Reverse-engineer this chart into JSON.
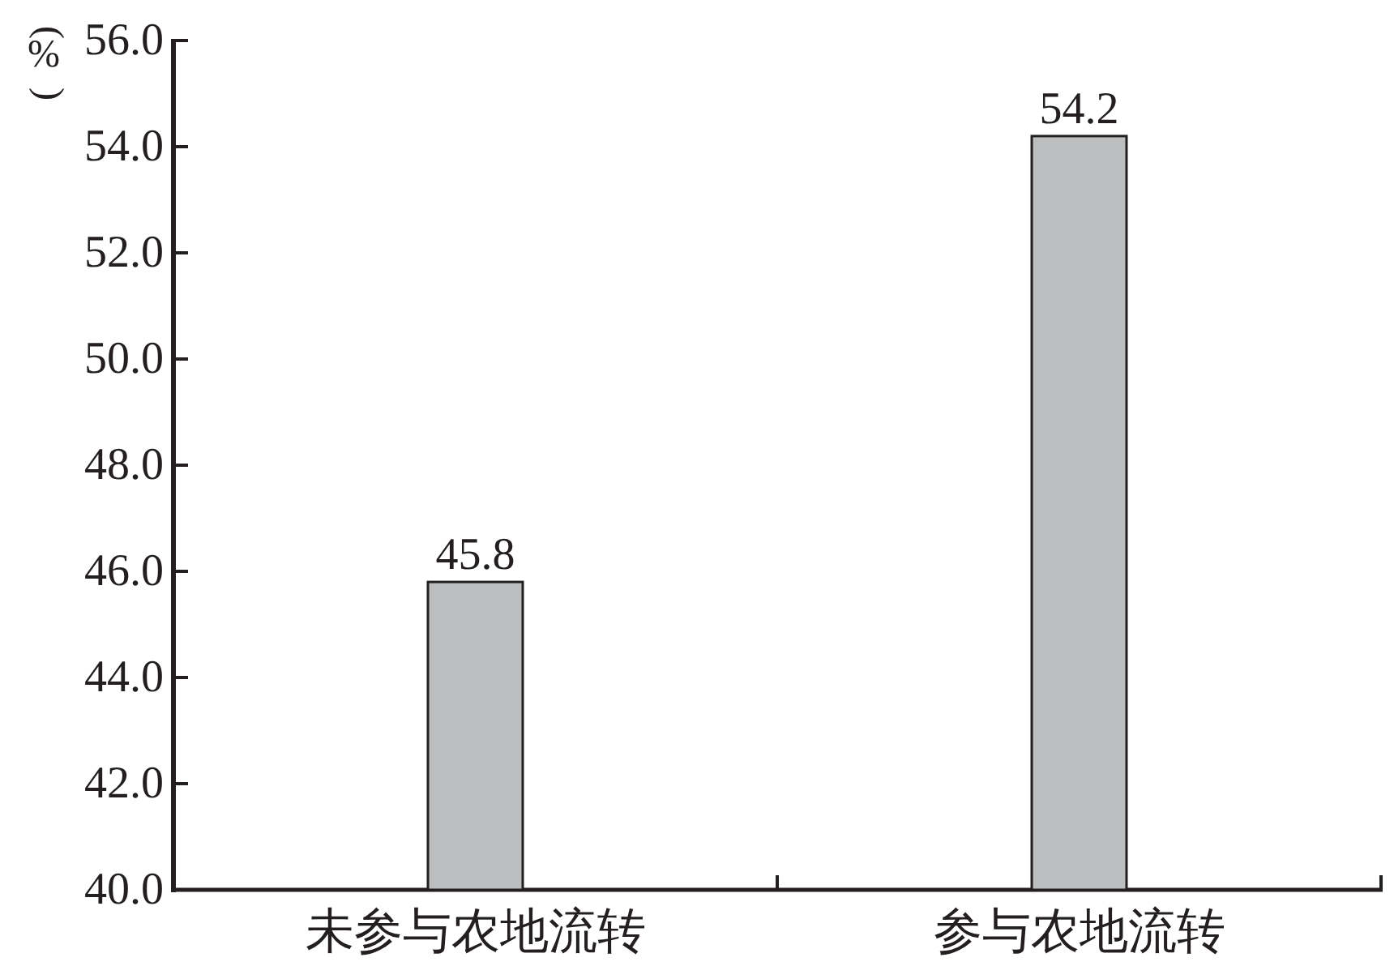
{
  "chart_data": {
    "type": "bar",
    "ylabel": "(%)",
    "categories": [
      "未参与农地流转",
      "参与农地流转"
    ],
    "values": [
      45.8,
      54.2
    ],
    "color": "#bcbec0",
    "data_labels": true,
    "ylim": [
      40,
      56
    ],
    "yticks": [
      {
        "value": 40,
        "label": "40.0"
      },
      {
        "value": 42,
        "label": "42.0"
      },
      {
        "value": 44,
        "label": "44.0"
      },
      {
        "value": 46,
        "label": "46.0"
      },
      {
        "value": 48,
        "label": "48.0"
      },
      {
        "value": 50,
        "label": "50.0"
      },
      {
        "value": 52,
        "label": "52.0"
      },
      {
        "value": 54,
        "label": "54.0"
      },
      {
        "value": 56,
        "label": "56.0"
      }
    ]
  }
}
